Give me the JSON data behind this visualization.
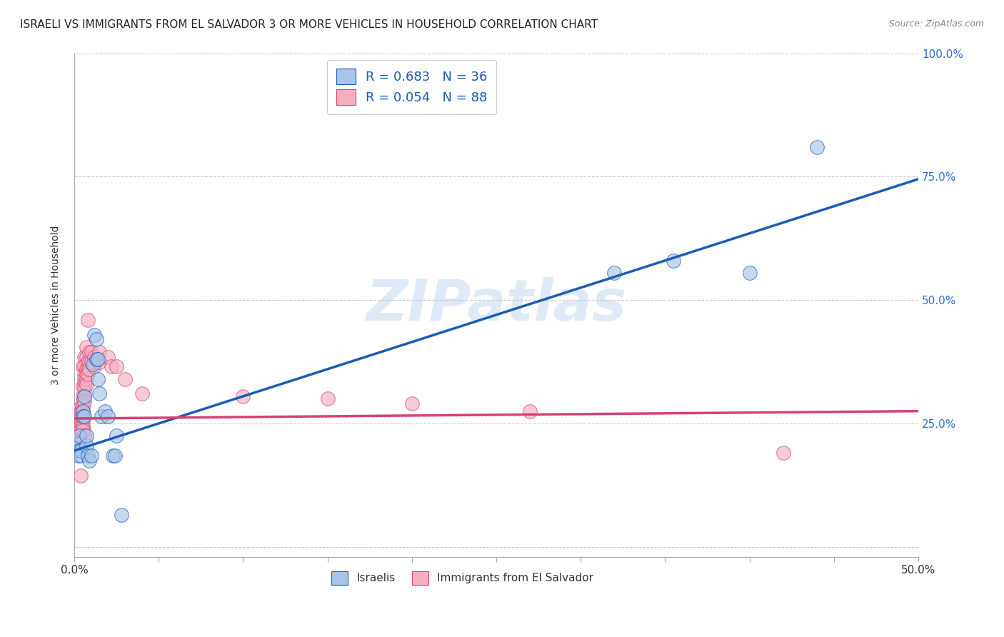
{
  "title": "ISRAELI VS IMMIGRANTS FROM EL SALVADOR 3 OR MORE VEHICLES IN HOUSEHOLD CORRELATION CHART",
  "source": "Source: ZipAtlas.com",
  "xlabel": "",
  "ylabel": "3 or more Vehicles in Household",
  "xlim": [
    0.0,
    0.5
  ],
  "ylim": [
    -0.02,
    1.0
  ],
  "xticks": [
    0.0,
    0.05,
    0.1,
    0.15,
    0.2,
    0.25,
    0.3,
    0.35,
    0.4,
    0.45,
    0.5
  ],
  "xticklabels": [
    "0.0%",
    "",
    "",
    "",
    "",
    "",
    "",
    "",
    "",
    "",
    "50.0%"
  ],
  "yticks": [
    0.0,
    0.25,
    0.5,
    0.75,
    1.0
  ],
  "yticklabels_right": [
    "",
    "25.0%",
    "50.0%",
    "75.0%",
    "100.0%"
  ],
  "legend_blue_R": "0.683",
  "legend_blue_N": "36",
  "legend_pink_R": "0.054",
  "legend_pink_N": "88",
  "legend_label_blue": "Israelis",
  "legend_label_pink": "Immigrants from El Salvador",
  "blue_color": "#a8c4e8",
  "pink_color": "#f4afc0",
  "blue_line_color": "#1a5cb5",
  "pink_line_color": "#d94070",
  "watermark_text": "ZIPatlas",
  "background_color": "#ffffff",
  "grid_color": "#cccccc",
  "title_fontsize": 11,
  "axis_label_fontsize": 10,
  "tick_fontsize": 11,
  "right_tick_color": "#3070c0",
  "blue_scatter": [
    [
      0.001,
      0.195
    ],
    [
      0.002,
      0.21
    ],
    [
      0.002,
      0.195
    ],
    [
      0.002,
      0.185
    ],
    [
      0.003,
      0.21
    ],
    [
      0.003,
      0.195
    ],
    [
      0.003,
      0.225
    ],
    [
      0.004,
      0.195
    ],
    [
      0.004,
      0.185
    ],
    [
      0.005,
      0.275
    ],
    [
      0.005,
      0.265
    ],
    [
      0.006,
      0.305
    ],
    [
      0.006,
      0.265
    ],
    [
      0.007,
      0.205
    ],
    [
      0.007,
      0.225
    ],
    [
      0.008,
      0.185
    ],
    [
      0.009,
      0.175
    ],
    [
      0.01,
      0.185
    ],
    [
      0.011,
      0.37
    ],
    [
      0.012,
      0.43
    ],
    [
      0.013,
      0.42
    ],
    [
      0.013,
      0.38
    ],
    [
      0.014,
      0.38
    ],
    [
      0.014,
      0.34
    ],
    [
      0.015,
      0.31
    ],
    [
      0.016,
      0.265
    ],
    [
      0.018,
      0.275
    ],
    [
      0.02,
      0.265
    ],
    [
      0.023,
      0.185
    ],
    [
      0.024,
      0.185
    ],
    [
      0.025,
      0.225
    ],
    [
      0.028,
      0.065
    ],
    [
      0.32,
      0.555
    ],
    [
      0.355,
      0.58
    ],
    [
      0.4,
      0.555
    ],
    [
      0.44,
      0.81
    ]
  ],
  "pink_scatter": [
    [
      0.001,
      0.275
    ],
    [
      0.001,
      0.255
    ],
    [
      0.001,
      0.25
    ],
    [
      0.001,
      0.245
    ],
    [
      0.001,
      0.24
    ],
    [
      0.001,
      0.235
    ],
    [
      0.001,
      0.225
    ],
    [
      0.001,
      0.22
    ],
    [
      0.001,
      0.215
    ],
    [
      0.001,
      0.21
    ],
    [
      0.002,
      0.275
    ],
    [
      0.002,
      0.27
    ],
    [
      0.002,
      0.265
    ],
    [
      0.002,
      0.26
    ],
    [
      0.002,
      0.255
    ],
    [
      0.002,
      0.25
    ],
    [
      0.002,
      0.245
    ],
    [
      0.002,
      0.24
    ],
    [
      0.002,
      0.235
    ],
    [
      0.002,
      0.23
    ],
    [
      0.002,
      0.22
    ],
    [
      0.002,
      0.205
    ],
    [
      0.003,
      0.28
    ],
    [
      0.003,
      0.27
    ],
    [
      0.003,
      0.26
    ],
    [
      0.003,
      0.25
    ],
    [
      0.003,
      0.24
    ],
    [
      0.003,
      0.23
    ],
    [
      0.003,
      0.22
    ],
    [
      0.004,
      0.275
    ],
    [
      0.004,
      0.27
    ],
    [
      0.004,
      0.265
    ],
    [
      0.004,
      0.26
    ],
    [
      0.004,
      0.255
    ],
    [
      0.004,
      0.25
    ],
    [
      0.004,
      0.245
    ],
    [
      0.004,
      0.24
    ],
    [
      0.004,
      0.235
    ],
    [
      0.004,
      0.145
    ],
    [
      0.005,
      0.365
    ],
    [
      0.005,
      0.325
    ],
    [
      0.005,
      0.305
    ],
    [
      0.005,
      0.295
    ],
    [
      0.005,
      0.285
    ],
    [
      0.005,
      0.275
    ],
    [
      0.005,
      0.265
    ],
    [
      0.005,
      0.255
    ],
    [
      0.005,
      0.245
    ],
    [
      0.005,
      0.24
    ],
    [
      0.005,
      0.235
    ],
    [
      0.006,
      0.385
    ],
    [
      0.006,
      0.365
    ],
    [
      0.006,
      0.35
    ],
    [
      0.006,
      0.34
    ],
    [
      0.006,
      0.33
    ],
    [
      0.006,
      0.32
    ],
    [
      0.006,
      0.305
    ],
    [
      0.006,
      0.295
    ],
    [
      0.006,
      0.225
    ],
    [
      0.007,
      0.405
    ],
    [
      0.007,
      0.385
    ],
    [
      0.007,
      0.36
    ],
    [
      0.007,
      0.35
    ],
    [
      0.007,
      0.34
    ],
    [
      0.007,
      0.33
    ],
    [
      0.008,
      0.46
    ],
    [
      0.008,
      0.375
    ],
    [
      0.008,
      0.36
    ],
    [
      0.008,
      0.35
    ],
    [
      0.009,
      0.395
    ],
    [
      0.009,
      0.375
    ],
    [
      0.009,
      0.36
    ],
    [
      0.01,
      0.395
    ],
    [
      0.01,
      0.375
    ],
    [
      0.012,
      0.385
    ],
    [
      0.012,
      0.365
    ],
    [
      0.015,
      0.395
    ],
    [
      0.015,
      0.375
    ],
    [
      0.02,
      0.385
    ],
    [
      0.022,
      0.365
    ],
    [
      0.025,
      0.365
    ],
    [
      0.03,
      0.34
    ],
    [
      0.04,
      0.31
    ],
    [
      0.1,
      0.305
    ],
    [
      0.15,
      0.3
    ],
    [
      0.2,
      0.29
    ],
    [
      0.27,
      0.275
    ],
    [
      0.42,
      0.19
    ]
  ],
  "blue_line": [
    [
      0.0,
      0.195
    ],
    [
      0.5,
      0.745
    ]
  ],
  "pink_line": [
    [
      0.0,
      0.26
    ],
    [
      0.5,
      0.275
    ]
  ]
}
